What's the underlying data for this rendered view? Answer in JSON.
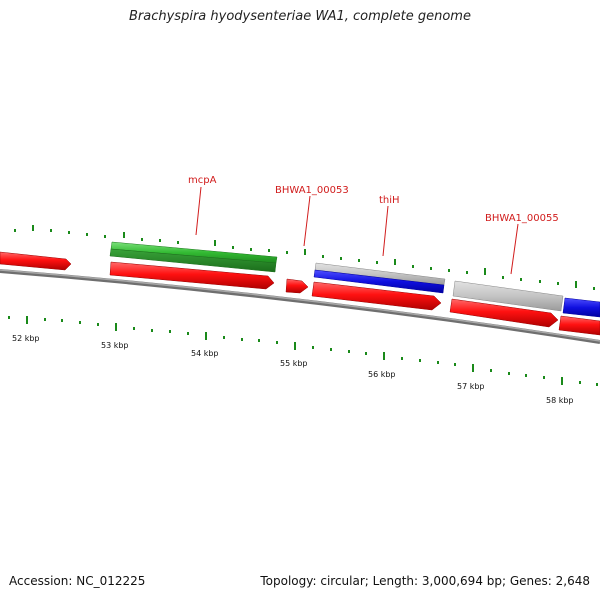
{
  "title": "Brachyspira hyodysenteriae WA1, complete genome",
  "footer": {
    "accession": "Accession: NC_012225",
    "summary": "Topology: circular; Length: 3,000,694 bp; Genes: 2,648"
  },
  "ruler": {
    "labels": [
      "52 kbp",
      "53 kbp",
      "54 kbp",
      "55 kbp",
      "56 kbp",
      "57 kbp",
      "58 kbp"
    ]
  },
  "gene_labels": [
    "mcpA",
    "BHWA1_00053",
    "thiH",
    "BHWA1_00055"
  ],
  "colors": {
    "cds": "#ff1111",
    "green_feature": "#3cc83c",
    "blue_feature": "#1a1ae6",
    "gray_feature": "#bdbdbd",
    "backbone": "#8a8a8a",
    "tick": "#1a8a1a",
    "label": "#d11c1c"
  }
}
